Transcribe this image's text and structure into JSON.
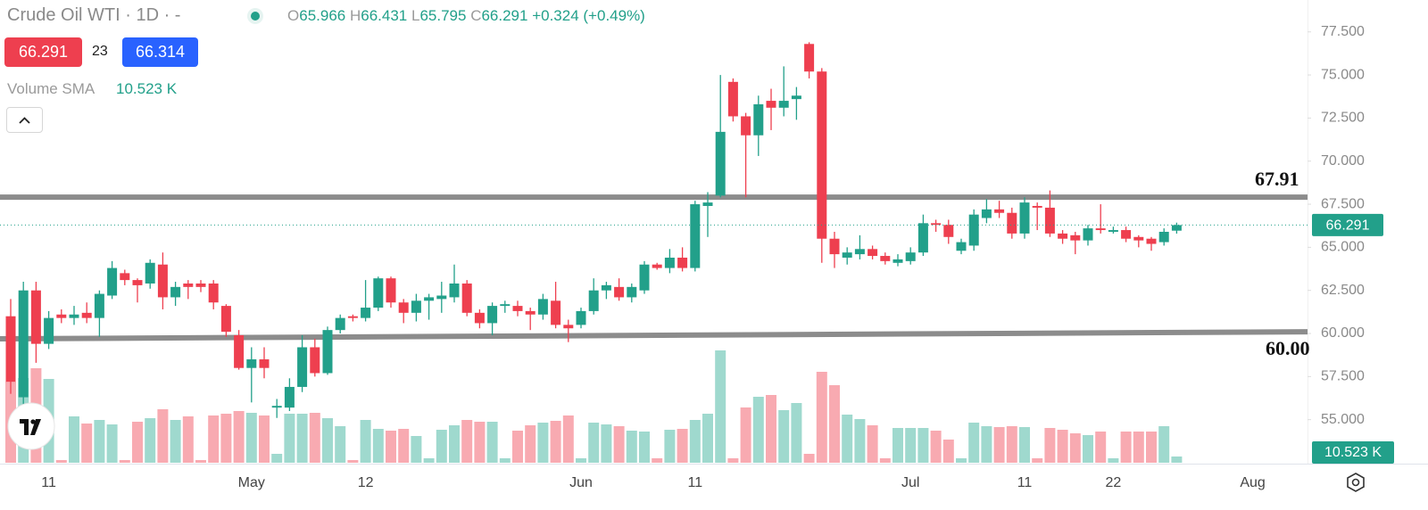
{
  "chart_data": {
    "type": "candlestick",
    "title": "Crude Oil WTI · 1D · -",
    "header": {
      "o": "O",
      "h": "H",
      "l": "L",
      "c": "C",
      "change": "+0.324 (+0.49%)",
      "spread": "23",
      "buy": "66.314",
      "volume_label": "Volume SMA",
      "volume_value": "10.523 K"
    },
    "categories": [
      null,
      null,
      null,
      "11",
      null,
      null,
      null,
      null,
      null,
      null,
      null,
      null,
      null,
      null,
      null,
      null,
      null,
      null,
      null,
      "May",
      null,
      null,
      null,
      null,
      null,
      null,
      null,
      null,
      "12",
      null,
      null,
      null,
      null,
      null,
      null,
      null,
      null,
      null,
      null,
      null,
      null,
      null,
      null,
      null,
      null,
      "Jun",
      null,
      null,
      null,
      null,
      null,
      null,
      null,
      null,
      "11",
      null,
      null,
      null,
      null,
      null,
      null,
      null,
      null,
      null,
      null,
      null,
      null,
      null,
      null,
      null,
      null,
      "Jul",
      null,
      null,
      null,
      null,
      null,
      null,
      null,
      null,
      "11",
      null,
      null,
      null,
      null,
      null,
      null,
      "22",
      null,
      null,
      null,
      null,
      null,
      null,
      null,
      null,
      null,
      null,
      "Aug"
    ],
    "open": [
      61.0,
      56.3,
      62.5,
      59.4,
      61.1,
      60.9,
      61.2,
      60.9,
      62.2,
      63.5,
      63.1,
      62.9,
      64.0,
      62.1,
      62.9,
      62.9,
      62.9,
      61.6,
      59.9,
      58.0,
      58.5,
      55.7,
      55.7,
      56.9,
      59.2,
      57.7,
      60.2,
      61.0,
      60.9,
      61.5,
      63.2,
      61.8,
      61.2,
      61.9,
      62.0,
      62.1,
      62.9,
      61.2,
      60.6,
      61.6,
      61.6,
      61.3,
      61.1,
      61.9,
      60.5,
      60.5,
      61.3,
      62.5,
      62.7,
      62.1,
      62.5,
      64.0,
      63.8,
      64.4,
      63.8,
      67.4,
      68.0,
      74.6,
      72.6,
      71.5,
      73.5,
      73.1,
      73.6,
      76.8,
      75.2,
      65.5,
      64.4,
      64.6,
      64.9,
      64.5,
      64.1,
      64.2,
      64.7,
      66.4,
      66.3,
      64.8,
      65.1,
      66.7,
      67.2,
      67.0,
      65.8,
      67.4,
      67.3,
      65.8,
      65.7,
      65.4,
      66.1,
      65.9,
      66.0,
      65.6,
      65.5,
      65.3,
      65.966,
      null,
      null,
      null,
      null,
      null,
      null
    ],
    "high": [
      62.0,
      63.0,
      63.0,
      61.3,
      61.4,
      61.6,
      61.8,
      62.5,
      64.2,
      63.7,
      63.2,
      64.3,
      64.7,
      63.0,
      63.1,
      63.1,
      63.1,
      61.7,
      60.2,
      59.2,
      59.2,
      56.2,
      57.4,
      59.9,
      59.7,
      60.4,
      61.1,
      61.1,
      63.1,
      63.3,
      63.3,
      62.0,
      62.3,
      62.3,
      63.0,
      64.0,
      63.1,
      61.4,
      61.8,
      61.9,
      61.9,
      61.5,
      62.3,
      63.0,
      60.8,
      61.5,
      63.2,
      63.0,
      63.2,
      62.9,
      64.2,
      64.1,
      64.9,
      65.0,
      67.7,
      68.2,
      75.0,
      74.8,
      72.8,
      73.8,
      74.2,
      75.5,
      74.3,
      76.9,
      75.4,
      65.9,
      65.0,
      65.7,
      65.1,
      64.7,
      64.6,
      65.0,
      66.9,
      66.6,
      66.6,
      65.5,
      67.2,
      67.8,
      67.7,
      67.3,
      67.9,
      67.6,
      68.3,
      66.0,
      65.9,
      66.3,
      67.5,
      66.2,
      66.2,
      65.7,
      65.6,
      66.1,
      66.431,
      null,
      null,
      null,
      null,
      null,
      null
    ],
    "low": [
      56.5,
      55.8,
      58.3,
      59.1,
      60.6,
      60.5,
      60.6,
      59.8,
      62.0,
      62.8,
      61.8,
      62.6,
      61.4,
      61.6,
      62.0,
      62.4,
      61.4,
      59.8,
      57.9,
      56.0,
      57.4,
      55.1,
      55.5,
      56.6,
      57.5,
      57.6,
      60.0,
      60.7,
      60.7,
      61.3,
      61.5,
      60.6,
      60.7,
      60.8,
      61.2,
      61.8,
      61.0,
      60.3,
      59.9,
      61.2,
      61.0,
      60.2,
      60.8,
      60.3,
      59.5,
      60.3,
      61.1,
      62.0,
      61.9,
      61.8,
      62.3,
      63.7,
      63.5,
      63.6,
      63.6,
      65.6,
      67.9,
      72.3,
      67.9,
      70.3,
      71.8,
      72.6,
      72.4,
      74.8,
      64.1,
      63.8,
      64.0,
      64.3,
      64.3,
      64.0,
      63.9,
      64.0,
      64.5,
      65.9,
      65.2,
      64.6,
      64.8,
      66.4,
      66.7,
      65.5,
      65.5,
      66.0,
      65.6,
      65.2,
      64.6,
      65.1,
      65.8,
      65.8,
      65.3,
      65.0,
      64.8,
      65.1,
      65.795,
      null,
      null,
      null,
      null,
      null,
      null
    ],
    "close": [
      57.2,
      62.5,
      59.4,
      60.9,
      60.9,
      61.1,
      60.9,
      62.3,
      63.8,
      63.1,
      62.8,
      64.1,
      62.1,
      62.7,
      62.7,
      62.7,
      61.8,
      60.1,
      58.0,
      58.5,
      58.0,
      55.8,
      56.9,
      59.2,
      57.7,
      60.2,
      60.9,
      60.9,
      61.5,
      63.2,
      61.8,
      61.2,
      61.9,
      62.1,
      62.2,
      62.9,
      61.2,
      60.6,
      61.6,
      61.7,
      61.3,
      61.1,
      62.0,
      60.5,
      60.3,
      61.3,
      62.5,
      62.8,
      62.1,
      62.7,
      64.0,
      63.8,
      64.4,
      63.8,
      67.5,
      67.6,
      71.7,
      72.6,
      71.5,
      73.3,
      73.1,
      73.5,
      73.8,
      75.2,
      65.5,
      64.6,
      64.7,
      64.9,
      64.5,
      64.2,
      64.3,
      64.7,
      66.4,
      66.3,
      65.6,
      65.3,
      66.9,
      67.2,
      67.0,
      65.8,
      67.6,
      67.3,
      65.8,
      65.5,
      65.4,
      66.1,
      66.0,
      66.0,
      65.5,
      65.4,
      65.2,
      65.9,
      66.291,
      null,
      null,
      null,
      null,
      null,
      null
    ],
    "volume": [
      91,
      95,
      106,
      94,
      3,
      52,
      44,
      48,
      43,
      3,
      46,
      50,
      60,
      48,
      52,
      3,
      53,
      55,
      58,
      56,
      53,
      10,
      55,
      55,
      56,
      50,
      41,
      3,
      48,
      38,
      36,
      38,
      30,
      5,
      37,
      42,
      48,
      46,
      46,
      5,
      36,
      42,
      45,
      47,
      53,
      5,
      45,
      43,
      41,
      36,
      35,
      5,
      37,
      38,
      48,
      55,
      126,
      5,
      62,
      74,
      76,
      59,
      67,
      10,
      102,
      87,
      54,
      49,
      42,
      5,
      39,
      39,
      39,
      36,
      26,
      5,
      45,
      41,
      40,
      41,
      40,
      5,
      39,
      37,
      33,
      31,
      35,
      5,
      35,
      35,
      35,
      41,
      7,
      null,
      null,
      null,
      null,
      null,
      null
    ],
    "up_color": "#22a08a",
    "down_color": "#ee3f4f",
    "volume_up_color": "#9fd9ce",
    "volume_down_color": "#f8aab1",
    "ylim": [
      52.5,
      79.35
    ],
    "yticks": [
      {
        "value": 55,
        "label": "55.000"
      },
      {
        "value": 57.5,
        "label": "57.500"
      },
      {
        "value": 60,
        "label": "60.000"
      },
      {
        "value": 62.5,
        "label": "62.500"
      },
      {
        "value": 65,
        "label": "65.000"
      },
      {
        "value": 67.5,
        "label": "67.500"
      },
      {
        "value": 70,
        "label": "70.000"
      },
      {
        "value": 72.5,
        "label": "72.500"
      },
      {
        "value": 75,
        "label": "75.000"
      },
      {
        "value": 77.5,
        "label": "77.500"
      }
    ],
    "volume_ylim": [
      0,
      135
    ],
    "levels": [
      {
        "from": 67.91,
        "to": 67.91,
        "label": "67.91"
      },
      {
        "from": 59.69,
        "to": 60.1,
        "label": "60.00"
      }
    ]
  }
}
